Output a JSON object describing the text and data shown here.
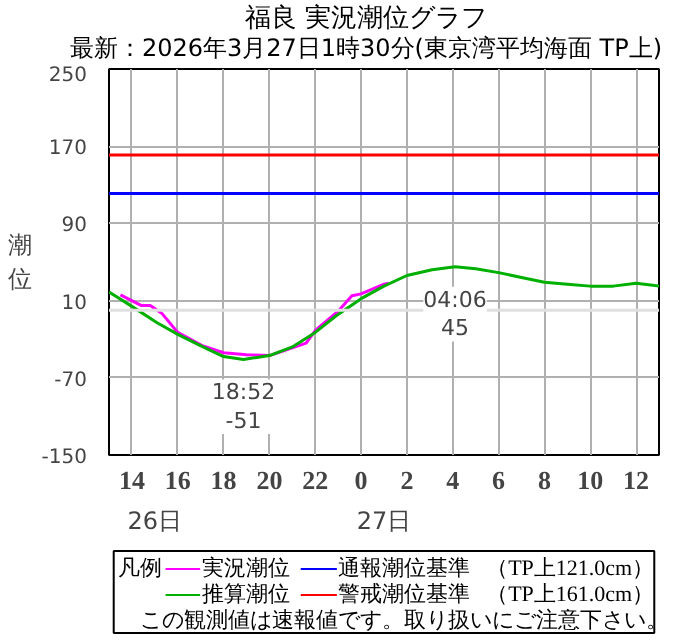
{
  "chart_data": {
    "type": "line",
    "title": "福良 実況潮位グラフ",
    "subtitle": "最新：2026年3月27日1時30分(東京湾平均海面 TP上)",
    "ylabel": "潮位",
    "legend_title": "凡例",
    "xlim": [
      "2026-03-26T13:00",
      "2026-03-27T13:00"
    ],
    "ylim": [
      -150,
      250
    ],
    "xticks": [
      {
        "value": "2026-03-26T14:00",
        "label": "14"
      },
      {
        "value": "2026-03-26T16:00",
        "label": "16"
      },
      {
        "value": "2026-03-26T18:00",
        "label": "18"
      },
      {
        "value": "2026-03-26T20:00",
        "label": "20"
      },
      {
        "value": "2026-03-26T22:00",
        "label": "22"
      },
      {
        "value": "2026-03-27T00:00",
        "label": "0"
      },
      {
        "value": "2026-03-27T02:00",
        "label": "2"
      },
      {
        "value": "2026-03-27T04:00",
        "label": "4"
      },
      {
        "value": "2026-03-27T06:00",
        "label": "6"
      },
      {
        "value": "2026-03-27T08:00",
        "label": "8"
      },
      {
        "value": "2026-03-27T10:00",
        "label": "10"
      },
      {
        "value": "2026-03-27T12:00",
        "label": "12"
      }
    ],
    "yticks": [
      -150,
      -70,
      10,
      90,
      170,
      250
    ],
    "grid": true,
    "legend": "bottom",
    "series": [
      {
        "name": "実況潮位",
        "color": "#ff00ff",
        "x": [
          "2026-03-26T13:30",
          "2026-03-26T14:24",
          "2026-03-26T14:48",
          "2026-03-26T15:18",
          "2026-03-26T16:00",
          "2026-03-26T17:06",
          "2026-03-26T18:00",
          "2026-03-26T19:00",
          "2026-03-26T20:00",
          "2026-03-26T21:00",
          "2026-03-26T21:36",
          "2026-03-26T22:00",
          "2026-03-26T23:00",
          "2026-03-26T23:36",
          "2026-03-27T00:00",
          "2026-03-27T01:00",
          "2026-03-27T01:12"
        ],
        "values": [
          16,
          5,
          5,
          -3,
          -23,
          -37,
          -44,
          -46,
          -47,
          -39,
          -34,
          -21,
          -1,
          15,
          17,
          27,
          28
        ]
      },
      {
        "name": "推算潮位",
        "color": "#00b000",
        "x": [
          "2026-03-26T13:00",
          "2026-03-26T14:00",
          "2026-03-26T15:06",
          "2026-03-26T16:00",
          "2026-03-26T17:06",
          "2026-03-26T18:00",
          "2026-03-26T18:52",
          "2026-03-26T20:00",
          "2026-03-26T21:00",
          "2026-03-26T22:00",
          "2026-03-26T22:54",
          "2026-03-27T00:00",
          "2026-03-27T01:00",
          "2026-03-27T02:00",
          "2026-03-27T03:06",
          "2026-03-27T04:06",
          "2026-03-27T05:00",
          "2026-03-27T06:00",
          "2026-03-27T07:00",
          "2026-03-27T08:00",
          "2026-03-27T09:00",
          "2026-03-27T10:00",
          "2026-03-27T11:00",
          "2026-03-27T12:00",
          "2026-03-27T13:00"
        ],
        "values": [
          19,
          4,
          -13,
          -25,
          -38,
          -48,
          -51,
          -47,
          -38,
          -23,
          -6,
          12,
          25,
          36,
          42,
          45,
          43,
          39,
          34,
          29,
          27,
          25,
          25,
          28,
          25
        ]
      }
    ],
    "ref_lines": [
      {
        "axis": "y",
        "value": 121,
        "label": "通報潮位基準",
        "color": "#0000ff"
      },
      {
        "axis": "y",
        "value": 161,
        "label": "警戒潮位基準",
        "color": "#ff0000"
      },
      {
        "axis": "y",
        "value": 0,
        "color": "#e0e0e0"
      }
    ],
    "annotations": [
      {
        "text": "18:52\n-51",
        "x": "2026-03-26T18:52",
        "y": -51
      },
      {
        "text": "04:06\n45",
        "x": "2026-03-27T04:06",
        "y": 45
      },
      "26日",
      "27日",
      "（TP上121.0cm）",
      "（TP上161.0cm）",
      "この観測値は速報値です。取り扱いにご注意下さい。"
    ]
  }
}
